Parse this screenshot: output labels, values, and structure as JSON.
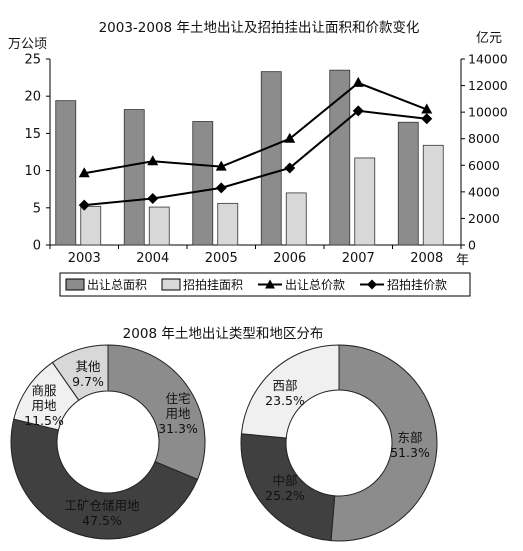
{
  "chart_data": [
    {
      "type": "bar",
      "title": "2003-2008 年土地出让及招拍挂出让面积和价款变化",
      "left_axis_unit": "万公顷",
      "right_axis_unit": "亿元",
      "x_axis_unit": "年",
      "categories": [
        "2003",
        "2004",
        "2005",
        "2006",
        "2007",
        "2008"
      ],
      "left_ylim": [
        0,
        25
      ],
      "left_ticks": [
        "0",
        "5",
        "10",
        "15",
        "20",
        "25"
      ],
      "right_ylim": [
        0,
        14000
      ],
      "right_ticks": [
        "0",
        "2000",
        "4000",
        "6000",
        "8000",
        "10000",
        "12000",
        "14000"
      ],
      "series": [
        {
          "name": "出让总面积",
          "kind": "bar",
          "axis": "left",
          "color": "#8c8c8c",
          "values": [
            19.4,
            18.2,
            16.6,
            23.3,
            23.5,
            16.5
          ]
        },
        {
          "name": "招拍挂面积",
          "kind": "bar",
          "axis": "left",
          "color": "#d8d8d8",
          "values": [
            5.2,
            5.1,
            5.6,
            7.0,
            11.7,
            13.4
          ]
        },
        {
          "name": "出让总价款",
          "kind": "line",
          "marker": "triangle",
          "axis": "right",
          "color": "#000000",
          "values": [
            5400,
            6300,
            5900,
            8000,
            12200,
            10200
          ]
        },
        {
          "name": "招拍挂价款",
          "kind": "line",
          "marker": "diamond",
          "axis": "right",
          "color": "#000000",
          "values": [
            3000,
            3500,
            4300,
            5800,
            10100,
            9500
          ]
        }
      ]
    },
    {
      "type": "pie",
      "subtype": "donut",
      "title": "2008 年土地出让类型和地区分布",
      "slices": [
        {
          "label": "住宅用地",
          "value": 31.3,
          "display": "31.3%",
          "color": "#8c8c8c"
        },
        {
          "label": "工矿仓储用地",
          "value": 47.5,
          "display": "47.5%",
          "color": "#404040"
        },
        {
          "label": "商服用地",
          "value": 11.5,
          "display": "11.5%",
          "color": "#f0f0f0"
        },
        {
          "label": "其他",
          "value": 9.7,
          "display": "9.7%",
          "color": "#d8d8d8"
        }
      ]
    },
    {
      "type": "pie",
      "subtype": "donut",
      "slices": [
        {
          "label": "东部",
          "value": 51.3,
          "display": "51.3%",
          "color": "#8c8c8c"
        },
        {
          "label": "中部",
          "value": 25.2,
          "display": "25.2%",
          "color": "#404040"
        },
        {
          "label": "西部",
          "value": 23.5,
          "display": "23.5%",
          "color": "#f0f0f0"
        }
      ]
    }
  ]
}
